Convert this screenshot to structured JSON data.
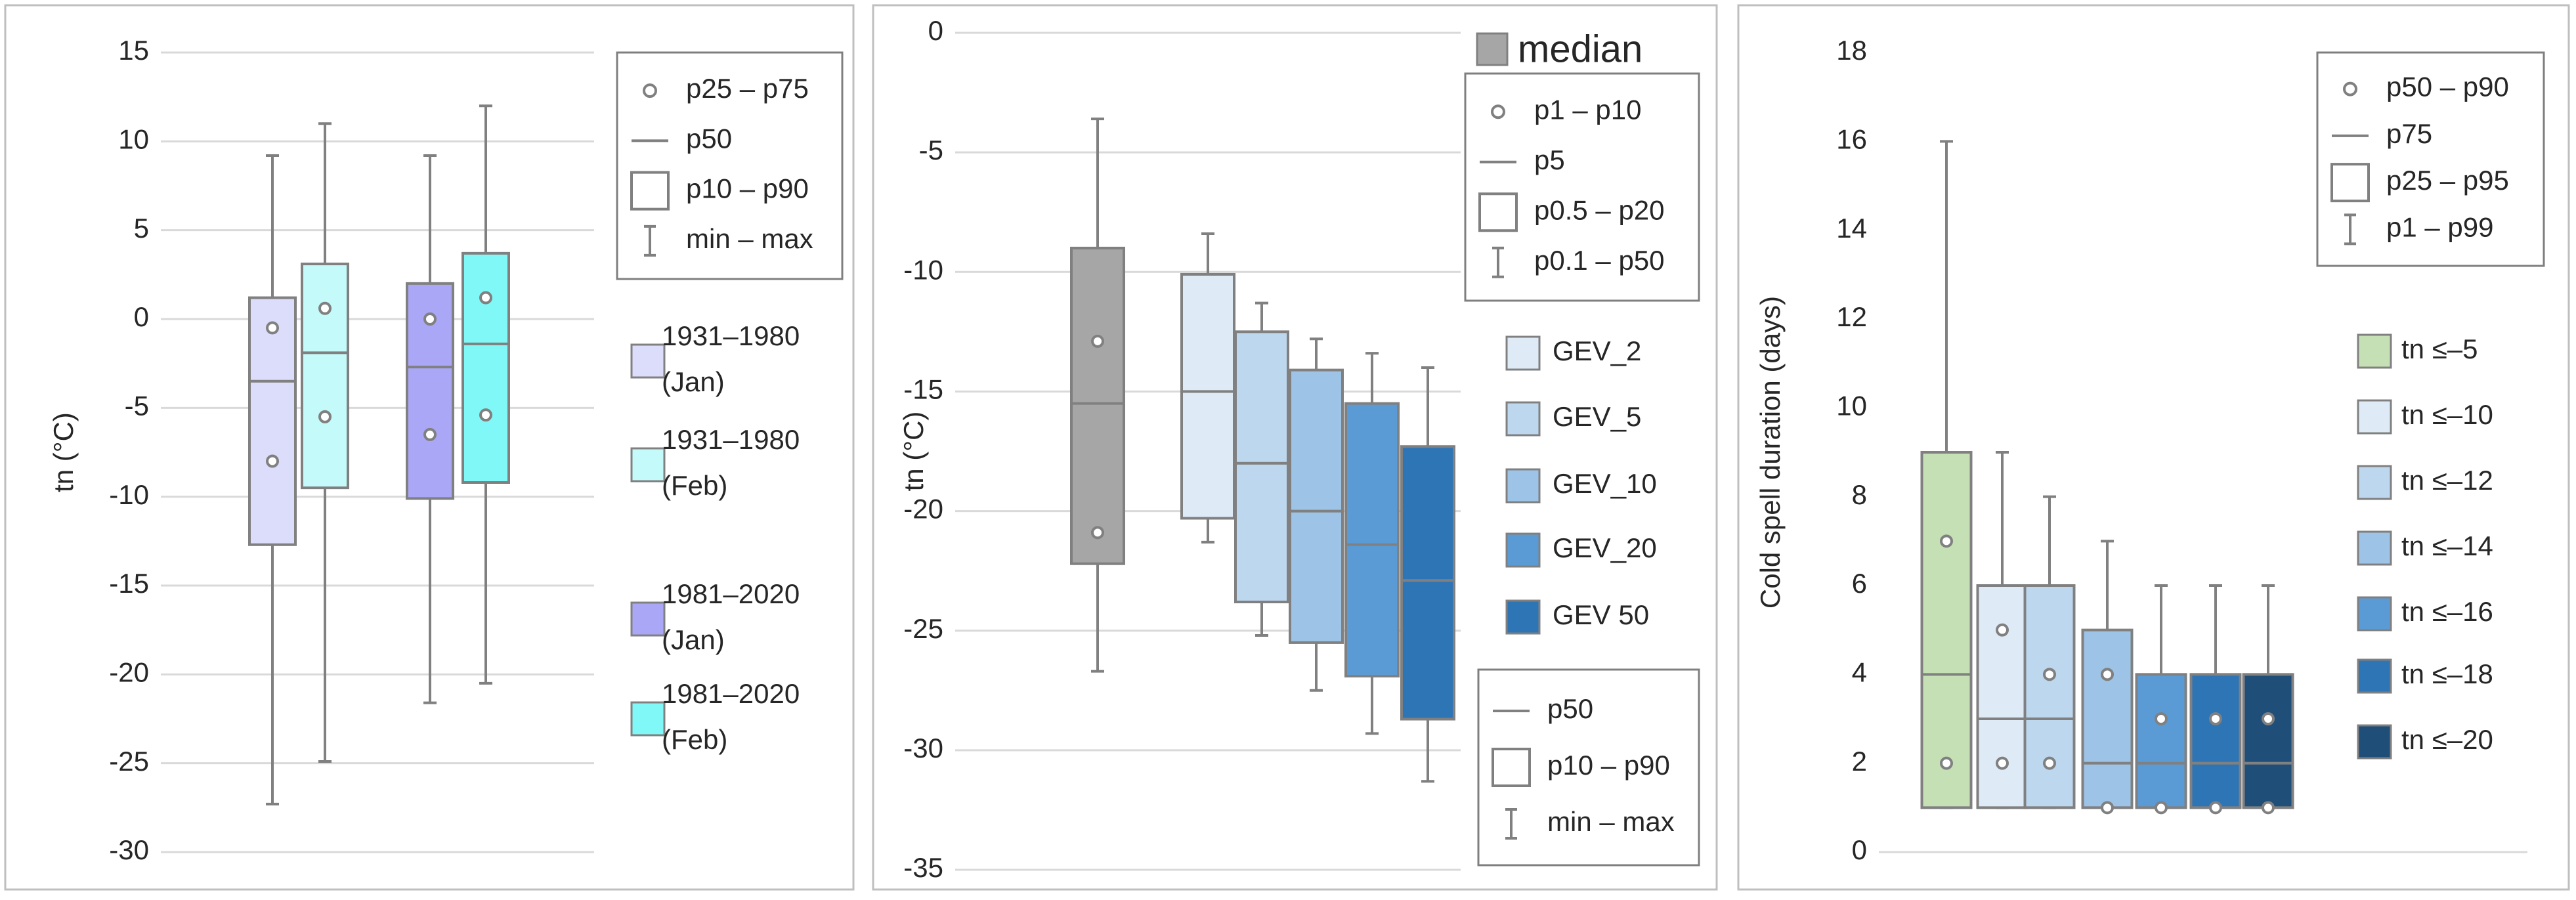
{
  "chart_data": [
    {
      "type": "box",
      "ylabel": "tn (°C)",
      "ylim": [
        -30,
        15
      ],
      "yticks": [
        -30,
        -25,
        -20,
        -15,
        -10,
        -5,
        0,
        5,
        10,
        15
      ],
      "grid": true,
      "key_legends": [
        {
          "items": [
            {
              "symbol": "point",
              "label": "p25 – p75"
            },
            {
              "symbol": "median",
              "label": "p50"
            },
            {
              "symbol": "box",
              "label": "p10 – p90"
            },
            {
              "symbol": "whisker",
              "label": "min – max"
            }
          ]
        }
      ],
      "series": [
        {
          "name": "1931–1980 (Jan)",
          "color": "#dcdcfb",
          "min": -27.3,
          "q1": -12.7,
          "median": -3.5,
          "q3": 1.2,
          "max": 9.2,
          "points": [
            -0.5,
            -8.0
          ]
        },
        {
          "name": "1931–1980 (Feb)",
          "color": "#c4fafa",
          "min": -24.9,
          "q1": -9.5,
          "median": -1.9,
          "q3": 3.1,
          "max": 11,
          "points": [
            0.6,
            -5.5
          ]
        },
        {
          "name": "1981–2020 (Jan)",
          "color": "#aaa7f7",
          "min": -21.6,
          "q1": -10.1,
          "median": -2.7,
          "q3": 2.0,
          "max": 9.2,
          "points": [
            0,
            -6.5
          ]
        },
        {
          "name": "1981–2020 (Feb)",
          "color": "#80f8f8",
          "min": -20.5,
          "q1": -9.2,
          "median": -1.4,
          "q3": 3.7,
          "max": 12,
          "points": [
            1.2,
            -5.4
          ]
        }
      ]
    },
    {
      "type": "box",
      "ylabel": "tn (°C)",
      "ylim": [
        -35,
        0
      ],
      "yticks": [
        -35,
        -30,
        -25,
        -20,
        -15,
        -10,
        -5,
        0
      ],
      "grid": true,
      "key_legends": [
        {
          "title": "median",
          "items": [
            {
              "symbol": "point",
              "label": "p1 – p10"
            },
            {
              "symbol": "median",
              "label": "p5"
            },
            {
              "symbol": "box",
              "label": "p0.5 – p20"
            },
            {
              "symbol": "whisker",
              "label": "p0.1 – p50"
            }
          ]
        },
        {
          "items": [
            {
              "symbol": "median",
              "label": "p50"
            },
            {
              "symbol": "box",
              "label": "p10 – p90"
            },
            {
              "symbol": "whisker",
              "label": "min – max"
            }
          ]
        }
      ],
      "series": [
        {
          "color": "#a6a6a6",
          "min": -26.7,
          "q1": -22.2,
          "median": -15.5,
          "q3": -9.0,
          "max": -3.6,
          "points": [
            -12.9,
            -20.9
          ]
        },
        {
          "name": "GEV_2",
          "color": "#deebf7",
          "min": -21.3,
          "q1": -20.3,
          "median": -15.0,
          "q3": -10.1,
          "max": -8.4
        },
        {
          "name": "GEV_5",
          "color": "#bdd7ee",
          "min": -25.2,
          "q1": -23.8,
          "median": -18.0,
          "q3": -12.5,
          "max": -11.3
        },
        {
          "name": "GEV_10",
          "color": "#9dc3e6",
          "min": -27.5,
          "q1": -25.5,
          "median": -20.0,
          "q3": -14.1,
          "max": -12.8
        },
        {
          "name": "GEV_20",
          "color": "#5b9bd5",
          "min": -29.3,
          "q1": -26.9,
          "median": -21.4,
          "q3": -15.5,
          "max": -13.4
        },
        {
          "name": "GEV 50",
          "color": "#2e75b6",
          "min": -31.3,
          "q1": -28.7,
          "median": -22.9,
          "q3": -17.3,
          "max": -14.0
        }
      ]
    },
    {
      "type": "box",
      "ylabel": "Cold spell duration (days)",
      "ylim": [
        0,
        18
      ],
      "yticks": [
        0,
        2,
        4,
        6,
        8,
        10,
        12,
        14,
        16,
        18
      ],
      "grid": false,
      "key_legends": [
        {
          "items": [
            {
              "symbol": "point",
              "label": "p50 – p90"
            },
            {
              "symbol": "median",
              "label": "p75"
            },
            {
              "symbol": "box",
              "label": "p25 – p95"
            },
            {
              "symbol": "whisker",
              "label": "p1 – p99"
            }
          ]
        }
      ],
      "series": [
        {
          "name": "tn ≤–5",
          "color": "#c5e0b4",
          "min": 1,
          "q1": 1,
          "median": 4,
          "q3": 9,
          "max": 16,
          "points": [
            7,
            2
          ]
        },
        {
          "name": "tn ≤–10",
          "color": "#deebf7",
          "min": 1,
          "q1": 1,
          "median": 3,
          "q3": 6,
          "max": 9,
          "points": [
            5,
            2
          ]
        },
        {
          "name": "tn ≤–12",
          "color": "#bdd7ee",
          "min": 1,
          "q1": 1,
          "median": 3,
          "q3": 6,
          "max": 8,
          "points": [
            4,
            2
          ]
        },
        {
          "name": "tn ≤–14",
          "color": "#9dc3e6",
          "min": 1,
          "q1": 1,
          "median": 2,
          "q3": 5,
          "max": 7,
          "points": [
            4,
            1
          ]
        },
        {
          "name": "tn ≤–16",
          "color": "#5b9bd5",
          "min": 1,
          "q1": 1,
          "median": 2,
          "q3": 4,
          "max": 6,
          "points": [
            3,
            1
          ]
        },
        {
          "name": "tn ≤–18",
          "color": "#2e75b6",
          "min": 1,
          "q1": 1,
          "median": 2,
          "q3": 4,
          "max": 6,
          "points": [
            3,
            1
          ]
        },
        {
          "name": "tn ≤–20",
          "color": "#1f4e79",
          "min": 1,
          "q1": 1,
          "median": 2,
          "q3": 4,
          "max": 6,
          "points": [
            3,
            1
          ]
        }
      ]
    }
  ]
}
